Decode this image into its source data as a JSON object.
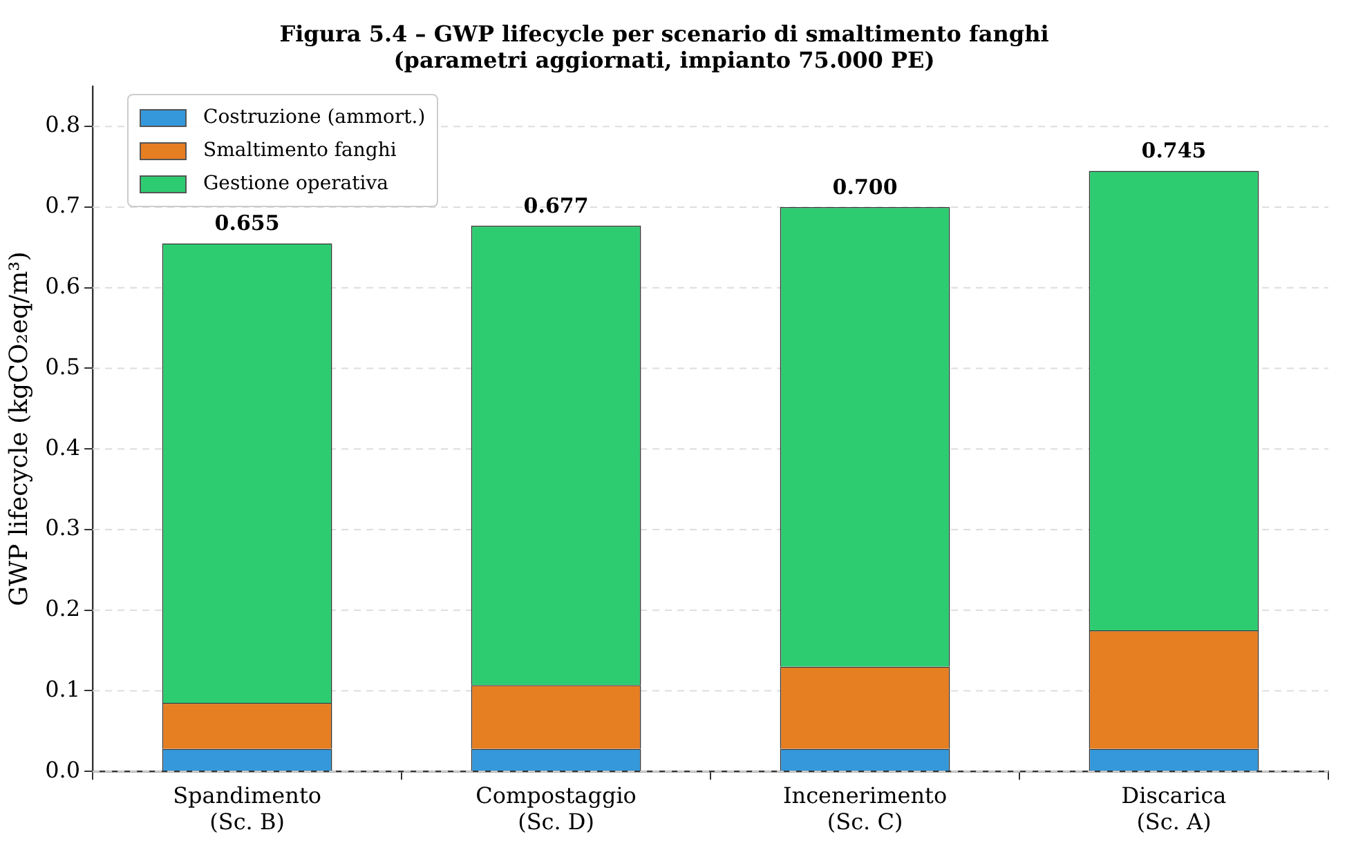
{
  "chart_data": {
    "type": "bar",
    "title": "Figura 5.4 – GWP lifecycle per scenario di smaltimento fanghi\n(parametri aggiornati, impianto 75.000 PE)",
    "ylabel": "GWP lifecycle (kgCO₂eq/m³)",
    "categories": [
      "Spandimento\n(Sc. B)",
      "Compostaggio\n(Sc. D)",
      "Incenerimento\n(Sc. C)",
      "Discarica\n(Sc. A)"
    ],
    "series": [
      {
        "name": "Costruzione (ammort.)",
        "color": "#3498db",
        "values": [
          0.028,
          0.028,
          0.028,
          0.028
        ]
      },
      {
        "name": "Smaltimento fanghi",
        "color": "#e67e22",
        "values": [
          0.057,
          0.079,
          0.102,
          0.147
        ]
      },
      {
        "name": "Gestione operativa",
        "color": "#2ecc71",
        "values": [
          0.57,
          0.57,
          0.57,
          0.57
        ]
      }
    ],
    "stacked": true,
    "totals": [
      "0.655",
      "0.677",
      "0.700",
      "0.745"
    ],
    "ylim": [
      0,
      0.85
    ],
    "yticks": [
      {
        "value": 0,
        "label": "0.0"
      },
      {
        "value": 0.1,
        "label": "0.1"
      },
      {
        "value": 0.2,
        "label": "0.2"
      },
      {
        "value": 0.3,
        "label": "0.3"
      },
      {
        "value": 0.4,
        "label": "0.4"
      },
      {
        "value": 0.5,
        "label": "0.5"
      },
      {
        "value": 0.6,
        "label": "0.6"
      },
      {
        "value": 0.7,
        "label": "0.7"
      },
      {
        "value": 0.8,
        "label": "0.8"
      }
    ],
    "grid": "y",
    "legend": "top left"
  }
}
